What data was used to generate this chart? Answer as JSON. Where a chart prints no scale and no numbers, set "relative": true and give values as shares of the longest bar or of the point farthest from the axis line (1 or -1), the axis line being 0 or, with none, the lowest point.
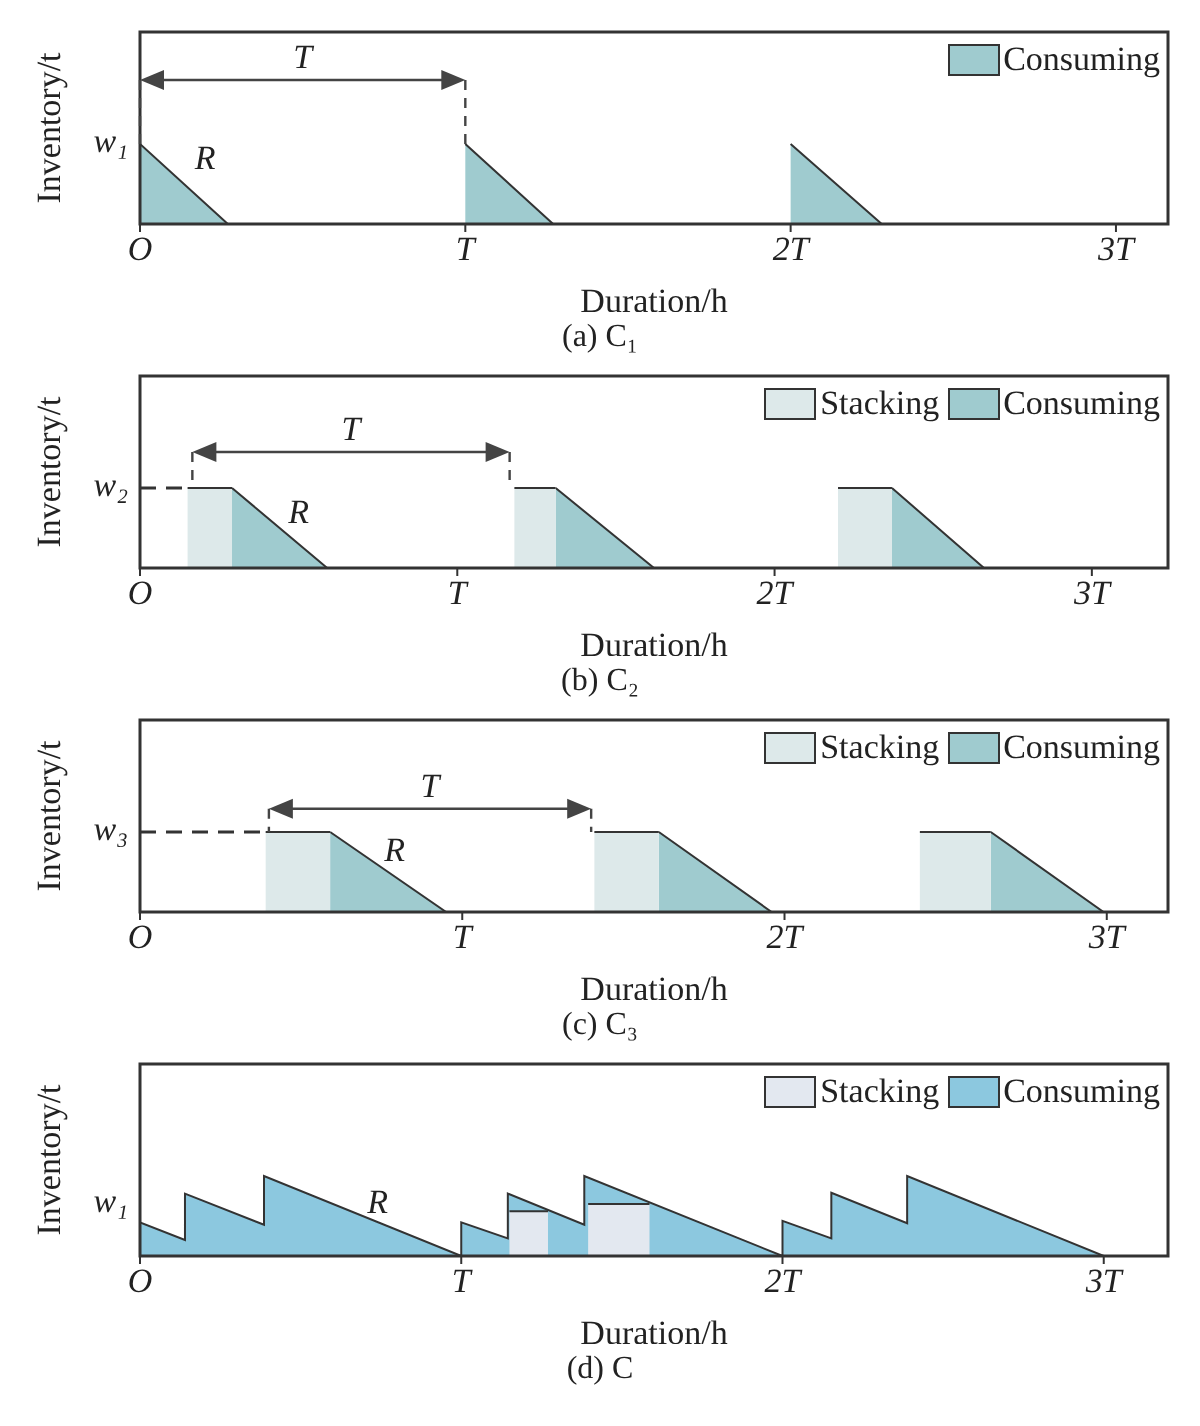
{
  "chart_data": [
    {
      "type": "area",
      "title": "(a) C₁",
      "xlabel": "Duration/h",
      "ylabel": "Inventory/t",
      "relative": true,
      "legend": "top right",
      "xlim": [
        0,
        3.16
      ],
      "xticks": [
        {
          "value": 0,
          "label": "O"
        },
        {
          "value": 1,
          "label": "T"
        },
        {
          "value": 2,
          "label": "2T"
        },
        {
          "value": 3,
          "label": "3T"
        }
      ],
      "series": [
        {
          "name": "Consuming",
          "color": "#9fcbcf",
          "x": [
            0,
            0.27,
            0.6,
            1,
            1.27,
            1.6,
            2,
            2.28
          ],
          "values": [
            1,
            0,
            null,
            1,
            0,
            null,
            1,
            0
          ]
        }
      ],
      "annotations": [
        "T",
        "R",
        "w₁"
      ]
    },
    {
      "type": "area",
      "title": "(b) C₂",
      "xlabel": "Duration/h",
      "ylabel": "Inventory/t",
      "relative": true,
      "legend": "top right",
      "xlim": [
        0,
        3.24
      ],
      "xticks": [
        {
          "value": 0,
          "label": "O"
        },
        {
          "value": 1,
          "label": "T"
        },
        {
          "value": 2,
          "label": "2T"
        },
        {
          "value": 3,
          "label": "3T"
        }
      ],
      "series": [
        {
          "name": "Stacking",
          "color": "#dde9ea",
          "x": [
            0.15,
            0.29,
            0.7,
            1.18,
            1.31,
            1.75,
            2.2,
            2.37
          ],
          "values": [
            1,
            1,
            null,
            1,
            1,
            null,
            1,
            1
          ]
        },
        {
          "name": "Consuming",
          "color": "#9fcbcf",
          "x": [
            0.29,
            0.59,
            0.9,
            1.31,
            1.62,
            1.9,
            2.37,
            2.66
          ],
          "values": [
            1,
            0,
            null,
            1,
            0,
            null,
            1,
            0
          ]
        }
      ],
      "ref_lines": [
        {
          "axis": "y",
          "value": 1,
          "label": "w₂",
          "line_style": "dashed"
        }
      ],
      "annotations": [
        "T",
        "R"
      ]
    },
    {
      "type": "area",
      "title": "(c) C₃",
      "xlabel": "Duration/h",
      "ylabel": "Inventory/t",
      "relative": true,
      "legend": "top right",
      "xlim": [
        0,
        3.19
      ],
      "xticks": [
        {
          "value": 0,
          "label": "O"
        },
        {
          "value": 1,
          "label": "T"
        },
        {
          "value": 2,
          "label": "2T"
        },
        {
          "value": 3,
          "label": "3T"
        }
      ],
      "series": [
        {
          "name": "Stacking",
          "color": "#dde9ea",
          "x": [
            0.39,
            0.59,
            1.0,
            1.41,
            1.61,
            2.0,
            2.42,
            2.64
          ],
          "values": [
            1,
            1,
            null,
            1,
            1,
            null,
            1,
            1
          ]
        },
        {
          "name": "Consuming",
          "color": "#9fcbcf",
          "x": [
            0.59,
            0.95,
            1.2,
            1.61,
            1.96,
            2.2,
            2.64,
            2.99
          ],
          "values": [
            1,
            0,
            null,
            1,
            0,
            null,
            1,
            0
          ]
        }
      ],
      "ref_lines": [
        {
          "axis": "y",
          "value": 1,
          "label": "w₃",
          "line_style": "dashed"
        }
      ],
      "annotations": [
        "T",
        "R"
      ]
    },
    {
      "type": "area",
      "title": "(d) C",
      "xlabel": "Duration/h",
      "ylabel": "Inventory/t",
      "relative": true,
      "legend": "top right",
      "xlim": [
        0,
        3.2
      ],
      "xticks": [
        {
          "value": 0,
          "label": "O"
        },
        {
          "value": 1,
          "label": "T"
        },
        {
          "value": 2,
          "label": "2T"
        },
        {
          "value": 3,
          "label": "3T"
        }
      ],
      "series": [
        {
          "name": "Stacking",
          "color": "#e3e8f0",
          "x": [
            1.15,
            1.27,
            1.33,
            1.395,
            1.586
          ],
          "values": [
            0.56,
            0.56,
            null,
            0.65,
            0.65
          ]
        },
        {
          "name": "Consuming",
          "color": "#8cc8df",
          "x": [
            0,
            0.14,
            0.14,
            0.386,
            0.386,
            1,
            1,
            1.145,
            1.145,
            1.383,
            1.383,
            2,
            2,
            2.152,
            2.152,
            2.388,
            2.388,
            3
          ],
          "values": [
            0.42,
            0.2,
            0.78,
            0.39,
            1,
            0,
            0.42,
            0.22,
            0.78,
            0.39,
            1,
            0,
            0.44,
            0.22,
            0.79,
            0.41,
            1,
            0
          ]
        }
      ],
      "annotations": [
        "R",
        "w₁"
      ]
    }
  ]
}
